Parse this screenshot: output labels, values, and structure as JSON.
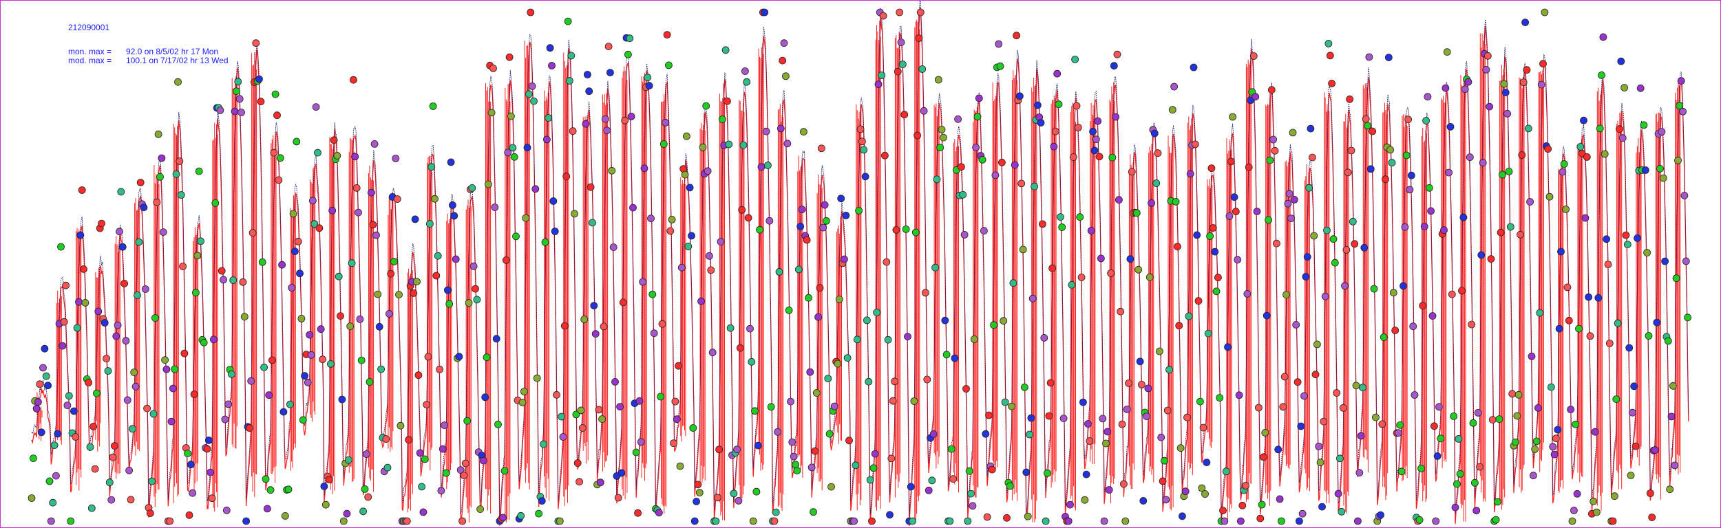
{
  "header": {
    "site_id": "212090001",
    "mon_max_label": "mon. max =",
    "mon_max_value": "92.0 on 8/5/02 hr 17 Mon",
    "mod_max_label": "mod. max =",
    "mod_max_value": "100.1 on 7/17/02 hr 13 Wed"
  },
  "colors": {
    "background": "#ffffff",
    "frame": "#cc33cc",
    "header_text": "#1a1aff",
    "model_line": "#ff2020",
    "monitor_trace": "#1a1a66",
    "marker_palette": [
      "#ff2a2a",
      "#aa55cc",
      "#22cc22",
      "#2233dd",
      "#88aa33",
      "#ff5555",
      "#9933cc",
      "#33bb88"
    ]
  },
  "chart_data": {
    "type": "line",
    "title": "",
    "xlabel": "",
    "ylabel": "",
    "ylim": [
      0,
      100
    ],
    "grid": false,
    "legend": "none",
    "annotations": [
      "mon. max = 92.0 on 8/5/02 hr 17 Mon",
      "mod. max = 100.1 on 7/17/02 hr 13 Wed"
    ],
    "series": [
      {
        "kind": "model",
        "daily_peaks": [
          26,
          46,
          58,
          50,
          56,
          64,
          70,
          78,
          58,
          78,
          88,
          92,
          76,
          64,
          70,
          76,
          76,
          70,
          64,
          52,
          72,
          62,
          64,
          86,
          86,
          94,
          86,
          92,
          80,
          84,
          90,
          88,
          86,
          70,
          80,
          86,
          84,
          94,
          82,
          72,
          68,
          60,
          82,
          98,
          96,
          100,
          82,
          76,
          82,
          86,
          90,
          88,
          84,
          82,
          82,
          86,
          72,
          76,
          76,
          80,
          68,
          76,
          92,
          84,
          72,
          70,
          84,
          80,
          86,
          82,
          80,
          78,
          84,
          88,
          96,
          90,
          88,
          90,
          72,
          76,
          86,
          80,
          76,
          80,
          86
        ],
        "daily_lows": [
          16,
          12,
          6,
          14,
          6,
          10,
          2,
          4,
          6,
          2,
          14,
          4,
          6,
          10,
          18,
          4,
          8,
          6,
          14,
          2,
          10,
          6,
          0,
          2,
          0,
          6,
          4,
          2,
          10,
          8,
          4,
          6,
          2,
          14,
          6,
          0,
          4,
          10,
          2,
          8,
          6,
          14,
          2,
          0,
          4,
          0,
          10,
          6,
          2,
          8,
          4,
          0,
          6,
          2,
          10,
          4,
          6,
          8,
          2,
          6,
          12,
          0,
          4,
          2,
          8,
          6,
          4,
          2,
          10,
          4,
          6,
          2,
          8,
          0,
          4,
          2,
          6,
          10,
          4,
          8,
          2,
          6,
          10,
          4,
          8
        ]
      }
    ]
  }
}
